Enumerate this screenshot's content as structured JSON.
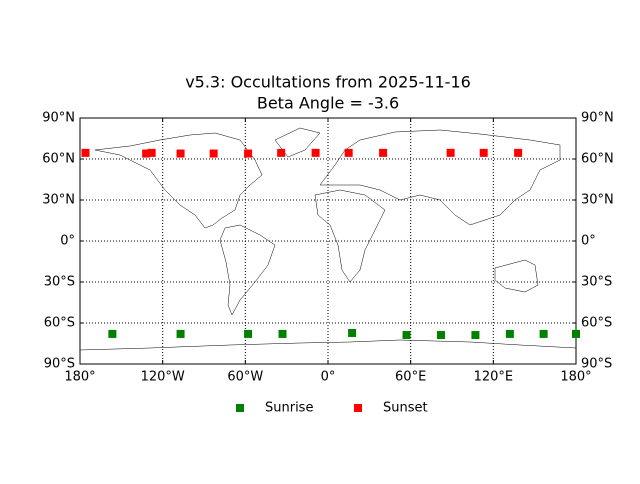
{
  "chart_data": {
    "type": "scatter",
    "title": "v5.3: Occultations from 2025-11-16",
    "subtitle": "Beta Angle = -3.6",
    "xlim": [
      -180,
      180
    ],
    "ylim": [
      -90,
      90
    ],
    "xticks": [
      {
        "value": -180,
        "label": "180°"
      },
      {
        "value": -120,
        "label": "120°W"
      },
      {
        "value": -60,
        "label": "60°W"
      },
      {
        "value": 0,
        "label": "0°"
      },
      {
        "value": 60,
        "label": "60°E"
      },
      {
        "value": 120,
        "label": "120°E"
      },
      {
        "value": 180,
        "label": "180°"
      }
    ],
    "yticks": [
      {
        "value": -90,
        "label": "90°S"
      },
      {
        "value": -60,
        "label": "60°S"
      },
      {
        "value": -30,
        "label": "30°S"
      },
      {
        "value": 0,
        "label": "0°"
      },
      {
        "value": 30,
        "label": "30°N"
      },
      {
        "value": 60,
        "label": "60°N"
      },
      {
        "value": 90,
        "label": "90°N"
      }
    ],
    "grid": true,
    "legend": "bottom",
    "series": [
      {
        "name": "Sunrise",
        "color": "#008000",
        "x": [
          -156.5,
          -107,
          -58,
          -33,
          17.5,
          57,
          82,
          107,
          132,
          156.5,
          180
        ],
        "values": [
          -68,
          -68,
          -68,
          -68,
          -67.3,
          -68.8,
          -68.8,
          -68.8,
          -68,
          -68,
          -68
        ]
      },
      {
        "name": "Sunset",
        "color": "#ff0000",
        "x": [
          -176,
          -132,
          -128,
          -107,
          -83,
          -58,
          -34,
          -9,
          15,
          40,
          89,
          113,
          138
        ],
        "values": [
          64.5,
          64,
          64.5,
          64,
          64,
          64,
          64.5,
          64.5,
          64.5,
          64.5,
          64.5,
          64.5,
          64.5
        ]
      }
    ]
  }
}
